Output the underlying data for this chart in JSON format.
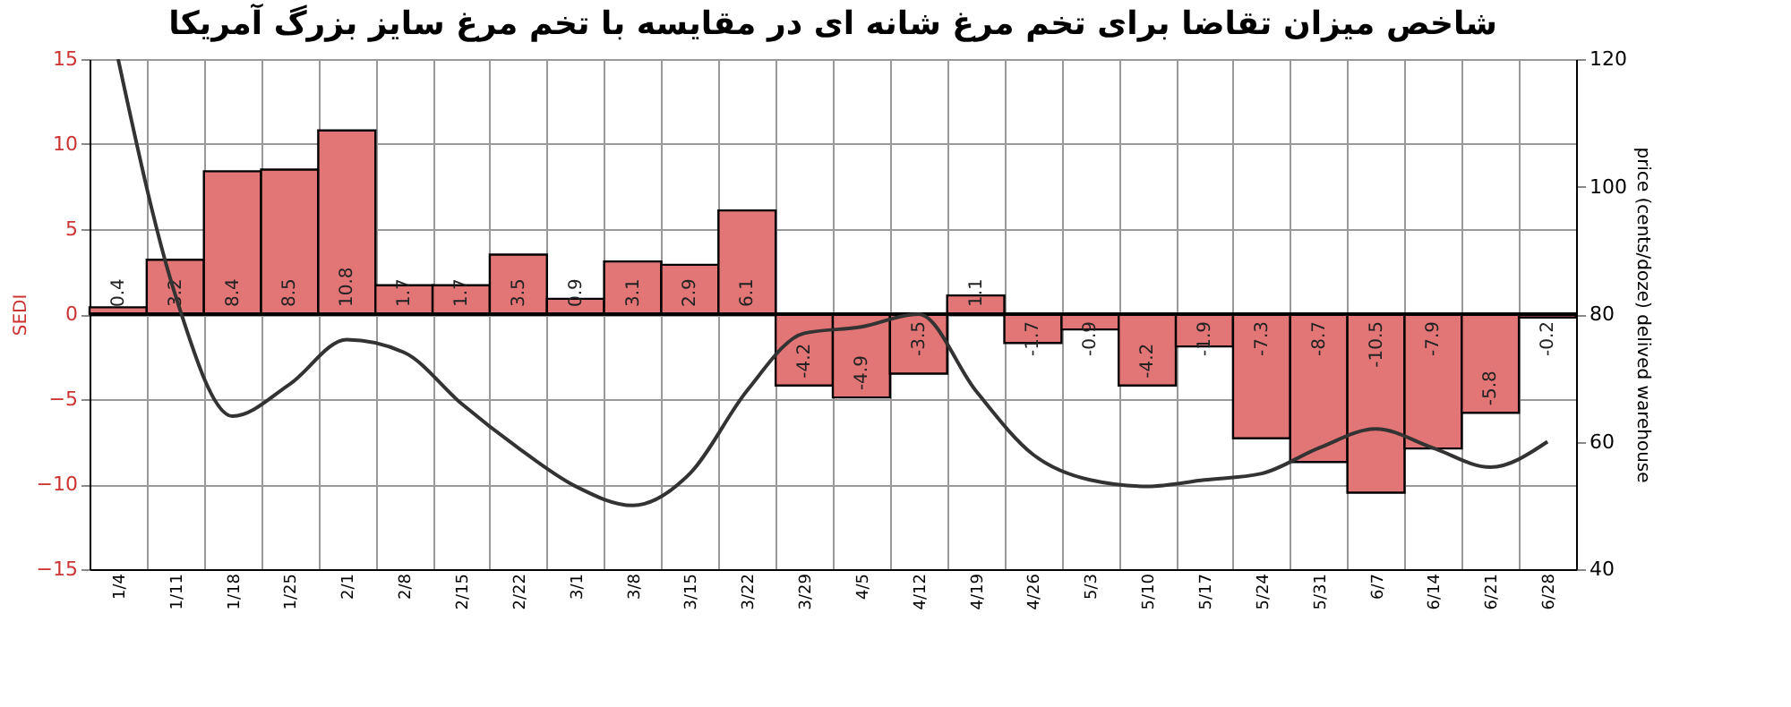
{
  "chart_data": {
    "type": "bar",
    "title": "شاخص میزان تقاضا برای تخم مرغ شانه ای در مقایسه با تخم مرغ سایز بزرگ آمریکا",
    "ylabel": "SEDI",
    "y2label": "price (cents/doze) delived warehouse",
    "categories": [
      "1/4",
      "1/11",
      "1/18",
      "1/25",
      "2/1",
      "2/8",
      "2/15",
      "2/22",
      "3/1",
      "3/8",
      "3/15",
      "3/22",
      "3/29",
      "4/5",
      "4/12",
      "4/19",
      "4/26",
      "5/3",
      "5/10",
      "5/17",
      "5/24",
      "5/31",
      "6/7",
      "6/14",
      "6/21",
      "6/28"
    ],
    "series": [
      {
        "color": "#e27575",
        "values": [
          0.4,
          3.2,
          8.4,
          8.5,
          10.8,
          1.7,
          1.7,
          3.5,
          0.9,
          3.1,
          2.9,
          6.1,
          -4.2,
          -4.9,
          -3.5,
          1.1,
          -1.7,
          -0.9,
          -4.2,
          -1.9,
          -7.3,
          -8.7,
          -10.5,
          -7.9,
          -5.8,
          -0.2
        ],
        "value_labels": [
          "0.4",
          "3.2",
          "8.4",
          "8.5",
          "10.8",
          "1.7",
          "1.7",
          "3.5",
          "0.9",
          "3.1",
          "2.9",
          "6.1",
          "-4.2",
          "-4.9",
          "-3.5",
          "1.1",
          "-1.7",
          "-0.9",
          "-4.2",
          "-1.9",
          "-7.3",
          "-8.7",
          "-10.5",
          "-7.9",
          "-5.8",
          "-0.2"
        ]
      },
      {
        "type": "line",
        "axis": "y2",
        "color": "#333333",
        "values": [
          120,
          83,
          64,
          69,
          76,
          74,
          66,
          59,
          53,
          50,
          55,
          68,
          77,
          78,
          80,
          68,
          58,
          54,
          53,
          54,
          55,
          59,
          62,
          59,
          56,
          60
        ]
      }
    ],
    "ylim": [
      -15,
      15
    ],
    "yticks": [
      -15,
      -10,
      -5,
      0,
      5,
      10,
      15
    ],
    "y2lim": [
      40,
      120
    ],
    "y2ticks": [
      40,
      60,
      80,
      100,
      120
    ],
    "ref_lines": [
      {
        "axis": "y",
        "value": 0,
        "color": "#000000"
      }
    ],
    "grid": true,
    "marker": "none",
    "line_style": "solid"
  }
}
